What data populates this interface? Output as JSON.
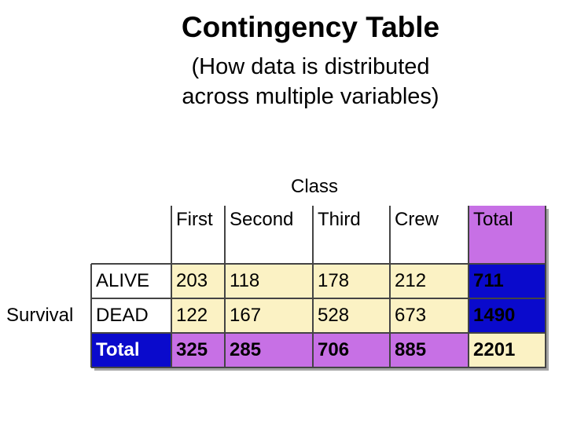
{
  "title": "Contingency Table",
  "subtitle_line1": "(How data is distributed",
  "subtitle_line2": "across multiple variables)",
  "column_group_label": "Class",
  "row_group_label": "Survival",
  "columns": [
    "First",
    "Second",
    "Third",
    "Crew",
    "Total"
  ],
  "rows": [
    {
      "label": "ALIVE",
      "values": [
        "203",
        "118",
        "178",
        "212"
      ],
      "total": "711"
    },
    {
      "label": "DEAD",
      "values": [
        "122",
        "167",
        "528",
        "673"
      ],
      "total": "1490"
    }
  ],
  "totals_row": {
    "label": "Total",
    "values": [
      "325",
      "285",
      "706",
      "885"
    ],
    "total": "2201"
  },
  "colors": {
    "cell_yellow": "#fbf2c4",
    "total_purple": "#c770e5",
    "total_blue": "#0a0acc"
  }
}
